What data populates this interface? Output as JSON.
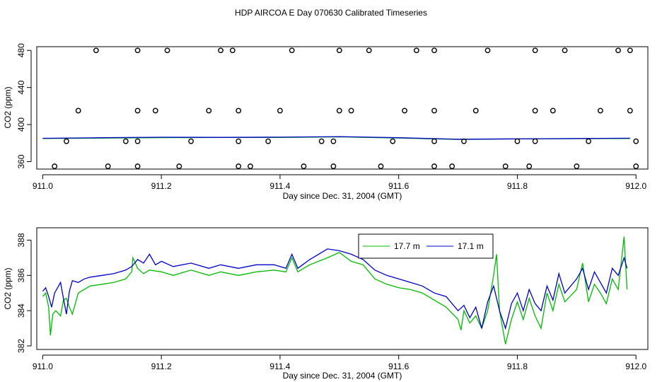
{
  "figure_title": "HDP AIRCOA E  Day 070630  Calibrated Timeseries",
  "chart_data": [
    {
      "type": "line",
      "xlabel": "Day since Dec. 31, 2004 (GMT)",
      "ylabel": "CO2 (ppm)",
      "xlim": [
        910.99,
        912.02
      ],
      "ylim": [
        352,
        484
      ],
      "xticks": [
        911.0,
        911.2,
        911.4,
        911.6,
        911.8,
        912.0
      ],
      "xtick_labels": [
        "911.0",
        "911.2",
        "911.4",
        "911.6",
        "911.8",
        "912.0"
      ],
      "yticks": [
        360,
        400,
        440,
        480
      ],
      "ytick_labels": [
        "360",
        "400",
        "440",
        "480"
      ],
      "series": [
        {
          "color": "#00bb00",
          "style": "line",
          "points": [
            [
              911.0,
              385.0
            ],
            [
              911.1,
              385.4
            ],
            [
              911.2,
              385.9
            ],
            [
              911.3,
              386.0
            ],
            [
              911.4,
              386.1
            ],
            [
              911.5,
              386.7
            ],
            [
              911.6,
              385.5
            ],
            [
              911.7,
              384.0
            ],
            [
              911.8,
              384.5
            ],
            [
              911.9,
              384.8
            ],
            [
              911.99,
              385.0
            ]
          ]
        },
        {
          "color": "#0000cc",
          "style": "line",
          "points": [
            [
              911.0,
              385.2
            ],
            [
              911.1,
              385.8
            ],
            [
              911.2,
              386.3
            ],
            [
              911.3,
              386.2
            ],
            [
              911.4,
              386.4
            ],
            [
              911.5,
              387.0
            ],
            [
              911.6,
              385.8
            ],
            [
              911.7,
              384.2
            ],
            [
              911.8,
              384.6
            ],
            [
              911.9,
              385.0
            ],
            [
              911.99,
              385.3
            ]
          ]
        },
        {
          "color": "#000000",
          "style": "points",
          "points": [
            [
              911.09,
              480
            ],
            [
              911.16,
              480
            ],
            [
              911.21,
              480
            ],
            [
              911.3,
              480
            ],
            [
              911.32,
              480
            ],
            [
              911.42,
              480
            ],
            [
              911.5,
              480
            ],
            [
              911.55,
              480
            ],
            [
              911.63,
              480
            ],
            [
              911.66,
              480
            ],
            [
              911.75,
              480
            ],
            [
              911.83,
              480
            ],
            [
              911.88,
              480
            ],
            [
              911.97,
              480
            ],
            [
              911.99,
              480
            ],
            [
              911.06,
              415
            ],
            [
              911.16,
              415
            ],
            [
              911.19,
              415
            ],
            [
              911.28,
              415
            ],
            [
              911.33,
              415
            ],
            [
              911.4,
              415
            ],
            [
              911.5,
              415
            ],
            [
              911.52,
              415
            ],
            [
              911.61,
              415
            ],
            [
              911.66,
              415
            ],
            [
              911.73,
              415
            ],
            [
              911.83,
              415
            ],
            [
              911.86,
              415
            ],
            [
              911.94,
              415
            ],
            [
              911.99,
              415
            ],
            [
              911.04,
              382
            ],
            [
              911.14,
              382
            ],
            [
              911.16,
              382
            ],
            [
              911.25,
              382
            ],
            [
              911.33,
              382
            ],
            [
              911.38,
              382
            ],
            [
              911.47,
              382
            ],
            [
              911.49,
              382
            ],
            [
              911.59,
              382
            ],
            [
              911.66,
              382
            ],
            [
              911.71,
              382
            ],
            [
              911.8,
              382
            ],
            [
              911.83,
              382
            ],
            [
              911.92,
              382
            ],
            [
              912.0,
              382
            ],
            [
              911.02,
              355
            ],
            [
              911.11,
              355
            ],
            [
              911.16,
              355
            ],
            [
              911.23,
              355
            ],
            [
              911.33,
              355
            ],
            [
              911.35,
              355
            ],
            [
              911.44,
              355
            ],
            [
              911.49,
              355
            ],
            [
              911.57,
              355
            ],
            [
              911.66,
              355
            ],
            [
              911.69,
              355
            ],
            [
              911.78,
              355
            ],
            [
              911.82,
              355
            ],
            [
              911.9,
              355
            ],
            [
              912.0,
              355
            ]
          ]
        }
      ]
    },
    {
      "type": "line",
      "xlabel": "Day since Dec. 31, 2004 (GMT)",
      "ylabel": "CO2 (ppm)",
      "xlim": [
        910.99,
        912.02
      ],
      "ylim": [
        381.8,
        388.7
      ],
      "xticks": [
        911.0,
        911.2,
        911.4,
        911.6,
        911.8,
        912.0
      ],
      "xtick_labels": [
        "911.0",
        "911.2",
        "911.4",
        "911.6",
        "911.8",
        "912.0"
      ],
      "yticks": [
        382,
        384,
        386,
        388
      ],
      "ytick_labels": [
        "382",
        "384",
        "386",
        "388"
      ],
      "legend": {
        "position": "top-center-right",
        "entries": [
          "17.7 m",
          "17.1 m"
        ]
      },
      "series": [
        {
          "name": "17.7 m",
          "color": "#00bb00",
          "points": [
            [
              911.0,
              384.8
            ],
            [
              911.005,
              385.0
            ],
            [
              911.01,
              384.2
            ],
            [
              911.013,
              382.6
            ],
            [
              911.017,
              383.8
            ],
            [
              911.022,
              384.0
            ],
            [
              911.03,
              383.7
            ],
            [
              911.035,
              384.6
            ],
            [
              911.04,
              384.7
            ],
            [
              911.045,
              384.2
            ],
            [
              911.05,
              383.8
            ],
            [
              911.06,
              385.0
            ],
            [
              911.07,
              385.2
            ],
            [
              911.08,
              385.4
            ],
            [
              911.1,
              385.5
            ],
            [
              911.12,
              385.6
            ],
            [
              911.14,
              385.8
            ],
            [
              911.15,
              386.2
            ],
            [
              911.152,
              387.0
            ],
            [
              911.16,
              386.4
            ],
            [
              911.17,
              386.1
            ],
            [
              911.18,
              386.3
            ],
            [
              911.2,
              386.2
            ],
            [
              911.22,
              386.0
            ],
            [
              911.25,
              386.3
            ],
            [
              911.28,
              386.0
            ],
            [
              911.3,
              386.2
            ],
            [
              911.33,
              386.0
            ],
            [
              911.36,
              386.2
            ],
            [
              911.39,
              386.3
            ],
            [
              911.41,
              386.2
            ],
            [
              911.42,
              387.0
            ],
            [
              911.43,
              386.2
            ],
            [
              911.45,
              386.6
            ],
            [
              911.48,
              387.0
            ],
            [
              911.5,
              387.3
            ],
            [
              911.52,
              386.8
            ],
            [
              911.54,
              386.6
            ],
            [
              911.56,
              385.8
            ],
            [
              911.58,
              385.5
            ],
            [
              911.6,
              385.3
            ],
            [
              911.62,
              385.2
            ],
            [
              911.64,
              385.0
            ],
            [
              911.66,
              384.6
            ],
            [
              911.68,
              384.2
            ],
            [
              911.7,
              383.5
            ],
            [
              911.705,
              382.9
            ],
            [
              911.71,
              384.0
            ],
            [
              911.72,
              383.3
            ],
            [
              911.73,
              383.7
            ],
            [
              911.74,
              383.0
            ],
            [
              911.75,
              384.0
            ],
            [
              911.76,
              386.0
            ],
            [
              911.765,
              387.2
            ],
            [
              911.77,
              384.0
            ],
            [
              911.78,
              382.1
            ],
            [
              911.79,
              383.5
            ],
            [
              911.8,
              384.5
            ],
            [
              911.81,
              383.5
            ],
            [
              911.82,
              384.7
            ],
            [
              911.83,
              383.7
            ],
            [
              911.84,
              383.0
            ],
            [
              911.85,
              385.0
            ],
            [
              911.86,
              384.0
            ],
            [
              911.87,
              385.5
            ],
            [
              911.88,
              384.5
            ],
            [
              911.9,
              385.2
            ],
            [
              911.91,
              386.7
            ],
            [
              911.92,
              384.5
            ],
            [
              911.93,
              385.5
            ],
            [
              911.94,
              385.0
            ],
            [
              911.95,
              384.4
            ],
            [
              911.96,
              385.8
            ],
            [
              911.97,
              385.2
            ],
            [
              911.98,
              388.2
            ],
            [
              911.985,
              385.2
            ]
          ]
        },
        {
          "name": "17.1 m",
          "color": "#0000cc",
          "points": [
            [
              911.0,
              385.1
            ],
            [
              911.005,
              385.3
            ],
            [
              911.01,
              384.8
            ],
            [
              911.015,
              384.2
            ],
            [
              911.02,
              385.0
            ],
            [
              911.03,
              385.6
            ],
            [
              911.035,
              384.7
            ],
            [
              911.04,
              383.8
            ],
            [
              911.045,
              385.1
            ],
            [
              911.05,
              385.7
            ],
            [
              911.06,
              385.6
            ],
            [
              911.07,
              385.8
            ],
            [
              911.08,
              385.9
            ],
            [
              911.1,
              386.0
            ],
            [
              911.12,
              386.1
            ],
            [
              911.14,
              386.3
            ],
            [
              911.15,
              386.5
            ],
            [
              911.16,
              386.9
            ],
            [
              911.17,
              386.7
            ],
            [
              911.18,
              387.2
            ],
            [
              911.19,
              386.6
            ],
            [
              911.2,
              386.8
            ],
            [
              911.22,
              386.5
            ],
            [
              911.25,
              386.7
            ],
            [
              911.28,
              386.4
            ],
            [
              911.3,
              386.6
            ],
            [
              911.33,
              386.4
            ],
            [
              911.36,
              386.6
            ],
            [
              911.39,
              386.6
            ],
            [
              911.41,
              386.4
            ],
            [
              911.42,
              387.2
            ],
            [
              911.43,
              386.4
            ],
            [
              911.45,
              386.9
            ],
            [
              911.48,
              387.5
            ],
            [
              911.5,
              387.4
            ],
            [
              911.52,
              387.2
            ],
            [
              911.54,
              386.9
            ],
            [
              911.56,
              386.3
            ],
            [
              911.58,
              386.0
            ],
            [
              911.6,
              385.8
            ],
            [
              911.62,
              385.6
            ],
            [
              911.64,
              385.4
            ],
            [
              911.66,
              385.0
            ],
            [
              911.68,
              384.8
            ],
            [
              911.7,
              384.0
            ],
            [
              911.71,
              384.3
            ],
            [
              911.72,
              383.6
            ],
            [
              911.73,
              384.2
            ],
            [
              911.74,
              383.0
            ],
            [
              911.75,
              384.5
            ],
            [
              911.76,
              385.4
            ],
            [
              911.77,
              384.0
            ],
            [
              911.78,
              383.0
            ],
            [
              911.79,
              384.4
            ],
            [
              911.8,
              385.0
            ],
            [
              911.81,
              384.0
            ],
            [
              911.82,
              385.2
            ],
            [
              911.83,
              384.4
            ],
            [
              911.84,
              384.0
            ],
            [
              911.85,
              385.4
            ],
            [
              911.86,
              384.6
            ],
            [
              911.87,
              386.1
            ],
            [
              911.88,
              385.0
            ],
            [
              911.9,
              385.8
            ],
            [
              911.91,
              386.4
            ],
            [
              911.92,
              385.2
            ],
            [
              911.93,
              386.2
            ],
            [
              911.94,
              385.6
            ],
            [
              911.95,
              385.0
            ],
            [
              911.96,
              386.4
            ],
            [
              911.97,
              386.0
            ],
            [
              911.98,
              387.0
            ],
            [
              911.985,
              386.4
            ]
          ]
        }
      ]
    }
  ]
}
